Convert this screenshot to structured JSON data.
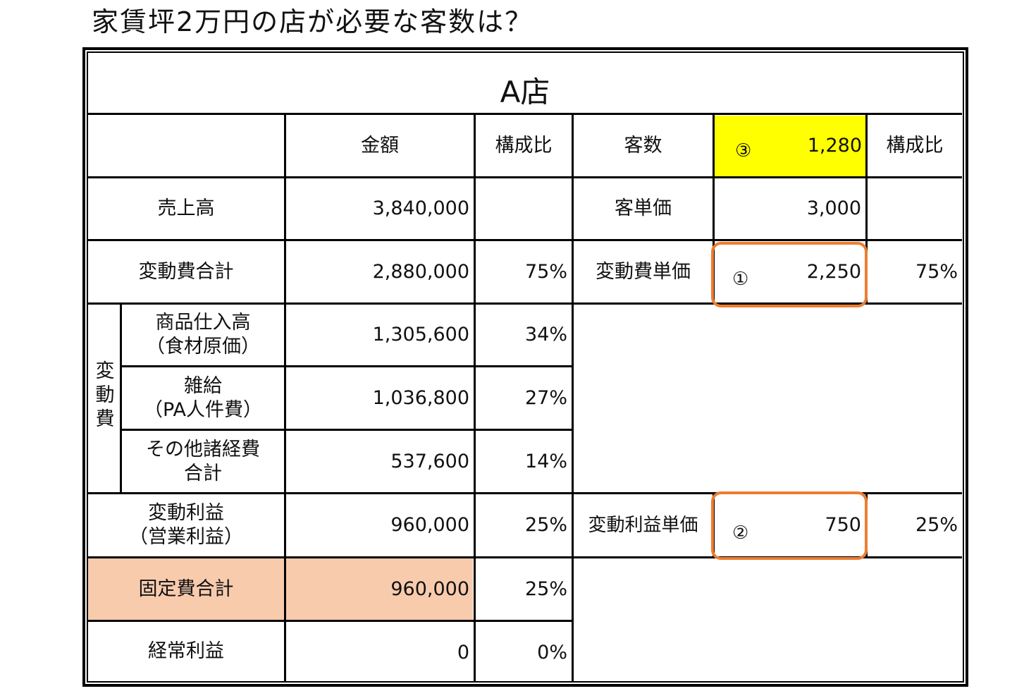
{
  "title": "家賃坪2万円の店が必要な客数は？",
  "store_name": "A店",
  "header": {
    "amount": "金額",
    "ratio": "構成比",
    "customers": "客数",
    "customers_marker": "③",
    "customers_value": "1,280",
    "ratio2": "構成比"
  },
  "rows": {
    "sales": {
      "label": "売上高",
      "amount": "3,840,000",
      "ratio": "",
      "unit_label": "客単価",
      "unit_value": "3,000",
      "unit_ratio": ""
    },
    "variable_total": {
      "label": "変動費合計",
      "amount": "2,880,000",
      "ratio": "75%",
      "unit_label": "変動費単価",
      "unit_marker": "①",
      "unit_value": "2,250",
      "unit_ratio": "75%"
    },
    "variable_group_label": "変動費",
    "purchases": {
      "label_line1": "商品仕入高",
      "label_line2": "（食材原価）",
      "amount": "1,305,600",
      "ratio": "34%"
    },
    "misc_wages": {
      "label_line1": "雑給",
      "label_line2": "（PA人件費）",
      "amount": "1,036,800",
      "ratio": "27%"
    },
    "other_expenses": {
      "label_line1": "その他諸経費",
      "label_line2": "合計",
      "amount": "537,600",
      "ratio": "14%"
    },
    "variable_profit": {
      "label_line1": "変動利益",
      "label_line2": "（営業利益）",
      "amount": "960,000",
      "ratio": "25%",
      "unit_label": "変動利益単価",
      "unit_marker": "②",
      "unit_value": "750",
      "unit_ratio": "25%"
    },
    "fixed_total": {
      "label": "固定費合計",
      "amount": "960,000",
      "ratio": "25%"
    },
    "ordinary_profit": {
      "label": "経常利益",
      "amount": "0",
      "ratio": "0%"
    }
  },
  "colors": {
    "highlight_yellow": "#ffff00",
    "highlight_peach": "#f8cbad",
    "callout_orange": "#ed7d31"
  }
}
